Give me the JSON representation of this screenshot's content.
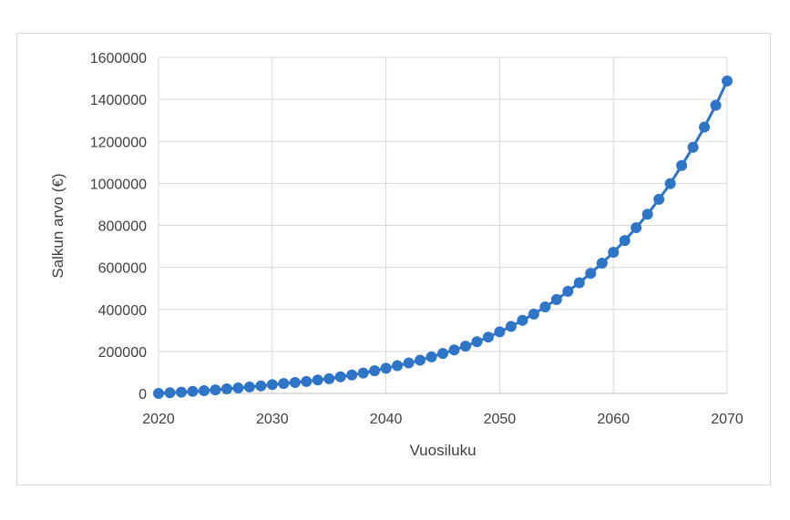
{
  "chart_data": {
    "type": "line",
    "title": "",
    "xlabel": "Vuosiluku",
    "ylabel": "Salkun arvo (€)",
    "xlim": [
      2020,
      2070
    ],
    "ylim": [
      0,
      1600000
    ],
    "x_ticks": [
      "2020",
      "2030",
      "2040",
      "2050",
      "2060",
      "2070"
    ],
    "y_ticks": [
      "0",
      "200000",
      "400000",
      "600000",
      "800000",
      "1000000",
      "1200000",
      "1400000",
      "1600000"
    ],
    "grid": true,
    "legend": "none",
    "series": [
      {
        "color": "#2e75c7",
        "x": [
          2020,
          2021,
          2022,
          2023,
          2024,
          2025,
          2026,
          2027,
          2028,
          2029,
          2030,
          2031,
          2032,
          2033,
          2034,
          2035,
          2036,
          2037,
          2038,
          2039,
          2040,
          2041,
          2042,
          2043,
          2044,
          2045,
          2046,
          2047,
          2048,
          2049,
          2050,
          2051,
          2052,
          2053,
          2054,
          2055,
          2056,
          2057,
          2058,
          2059,
          2060,
          2061,
          2062,
          2063,
          2064,
          2065,
          2066,
          2067,
          2068,
          2069,
          2070
        ],
        "values": [
          0,
          3000,
          6000,
          9500,
          13000,
          17000,
          21500,
          26000,
          31000,
          36000,
          42000,
          47000,
          52000,
          57000,
          64000,
          70000,
          79000,
          88000,
          97000,
          108000,
          120000,
          132000,
          145000,
          158000,
          174000,
          190000,
          207000,
          225000,
          246000,
          268000,
          293000,
          319000,
          348000,
          378000,
          412000,
          447000,
          486000,
          527000,
          572000,
          620000,
          672000,
          728000,
          789000,
          853000,
          924000,
          999000,
          1085000,
          1172000,
          1268000,
          1372000,
          1488000
        ]
      }
    ]
  }
}
